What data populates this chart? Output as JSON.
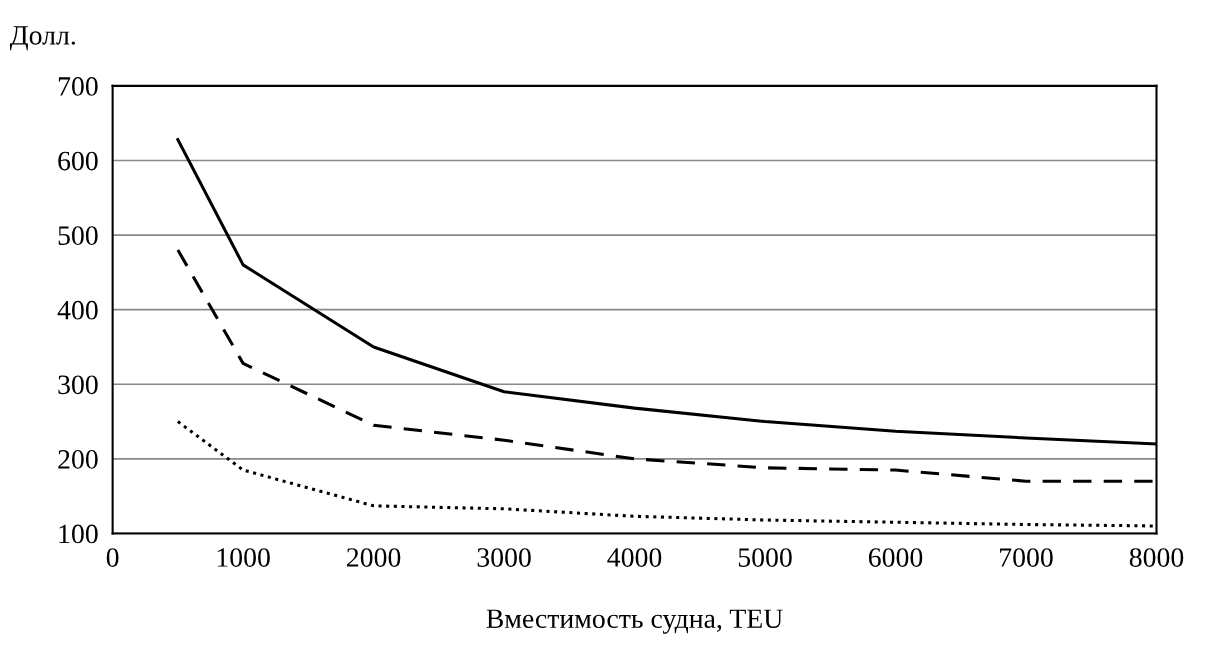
{
  "chart_data": {
    "type": "line",
    "ylabel": "Долл.",
    "xlabel": "Вместимость судна, TEU",
    "x": [
      500,
      1000,
      2000,
      3000,
      4000,
      5000,
      6000,
      7000,
      8000
    ],
    "series": [
      {
        "color": "#000000",
        "line_style": "solid",
        "values": [
          628,
          460,
          350,
          290,
          268,
          250,
          237,
          228,
          220
        ]
      },
      {
        "color": "#000000",
        "line_style": "dashed",
        "values": [
          480,
          328,
          245,
          225,
          200,
          188,
          185,
          170,
          170
        ]
      },
      {
        "color": "#000000",
        "line_style": "dotted",
        "values": [
          250,
          185,
          137,
          133,
          123,
          118,
          115,
          112,
          110
        ]
      }
    ],
    "xlim": [
      0,
      8000
    ],
    "xticks": [
      0,
      1000,
      2000,
      3000,
      4000,
      5000,
      6000,
      7000,
      8000
    ],
    "ylim": [
      100,
      700
    ],
    "yticks": [
      100,
      200,
      300,
      400,
      500,
      600,
      700
    ],
    "grid": "y",
    "legend": false,
    "marker": "none"
  }
}
